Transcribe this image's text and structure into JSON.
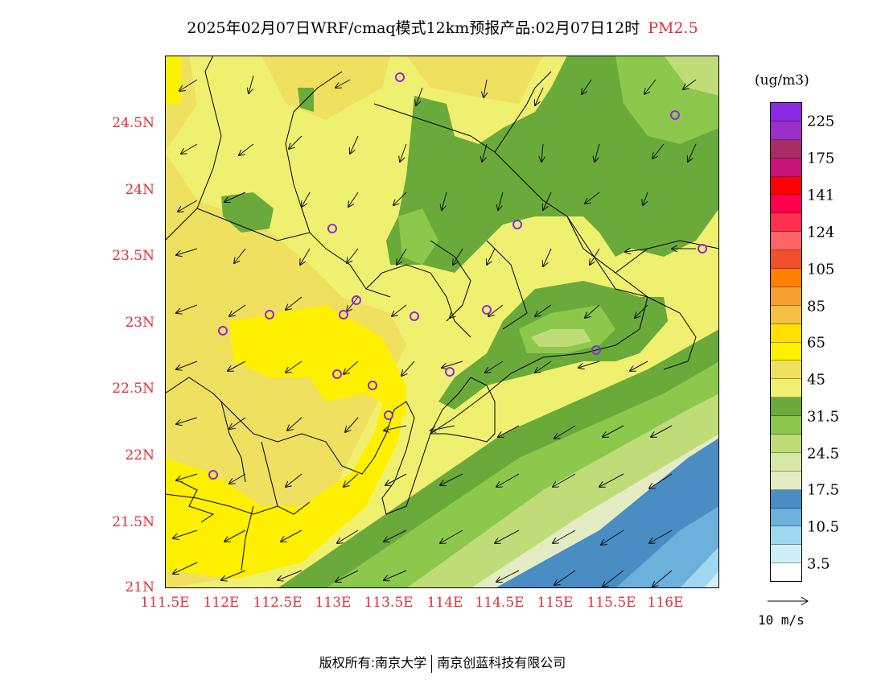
{
  "title": {
    "main": "2025年02月07日WRF/cmaq模式12km预报产品:02月07日12时",
    "pollutant": "PM2.5"
  },
  "axes": {
    "y_labels": [
      "24.5N",
      "24N",
      "23.5N",
      "23N",
      "22.5N",
      "22N",
      "21.5N",
      "21N"
    ],
    "x_labels": [
      "111.5E",
      "112E",
      "112.5E",
      "113E",
      "113.5E",
      "114E",
      "114.5E",
      "115E",
      "115.5E",
      "116E"
    ]
  },
  "legend": {
    "units": "(ug/m3)",
    "labels": [
      "225",
      "175",
      "141",
      "124",
      "105",
      "85",
      "65",
      "45",
      "31.5",
      "24.5",
      "17.5",
      "10.5",
      "3.5"
    ],
    "colors": [
      "#8a2be2",
      "#9b30c9",
      "#a82c64",
      "#c8137a",
      "#ff0000",
      "#ff0050",
      "#ff3050",
      "#ff6464",
      "#f0502c",
      "#ff8000",
      "#f5a030",
      "#f5c040",
      "#ffe000",
      "#fff000",
      "#f0e060",
      "#f0f070",
      "#6aaa3a",
      "#8cc84c",
      "#c0dc78",
      "#d8e8a8",
      "#e4ecc4",
      "#4a8cc4",
      "#6cb0dc",
      "#a0d8f0",
      "#d0eef8",
      "#ffffff"
    ]
  },
  "wind_reference": {
    "label": "10 m/s"
  },
  "footer": {
    "left": "版权所有:南京大学",
    "right": "南京创蓝科技有限公司"
  }
}
